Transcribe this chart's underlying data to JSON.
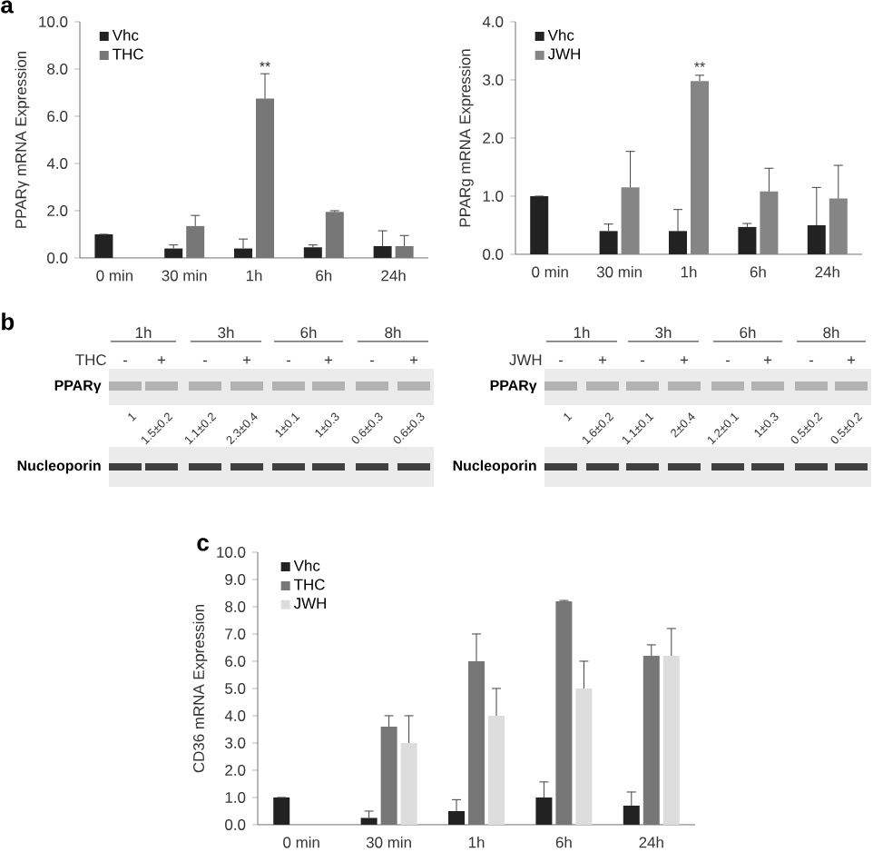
{
  "chart_data": [
    {
      "type": "bar",
      "categories": [
        "0 min",
        "30 min",
        "1h",
        "6h",
        "24h"
      ],
      "ylabel": "PPARγ mRNA Expression",
      "ylim": [
        0,
        10
      ],
      "yticks": [
        {
          "value": 0,
          "label": "0.0"
        },
        {
          "value": 2,
          "label": "2.0"
        },
        {
          "value": 4,
          "label": "4.0"
        },
        {
          "value": 6,
          "label": "6.0"
        },
        {
          "value": 8,
          "label": "8.0"
        },
        {
          "value": 10,
          "label": "10.0"
        }
      ],
      "legend": "top left",
      "series": [
        {
          "name": "Vhc",
          "color": "#222222",
          "values": [
            1.0,
            0.4,
            0.4,
            0.45,
            0.5
          ],
          "errors": [
            null,
            0.15,
            0.4,
            0.1,
            0.65
          ]
        },
        {
          "name": "THC",
          "color": "#777777",
          "values": [
            null,
            1.35,
            6.75,
            1.95,
            0.5
          ],
          "errors": [
            null,
            0.45,
            1.05,
            0.05,
            0.45
          ]
        }
      ],
      "annotations": [
        "a",
        {
          "text": "**",
          "x": "1h",
          "y": 7.8
        }
      ]
    },
    {
      "type": "bar",
      "categories": [
        "0 min",
        "30 min",
        "1h",
        "6h",
        "24h"
      ],
      "ylabel": "PPARg mRNA Expression",
      "ylim": [
        0,
        4
      ],
      "yticks": [
        {
          "value": 0,
          "label": "0.0"
        },
        {
          "value": 1,
          "label": "1.0"
        },
        {
          "value": 2,
          "label": "2.0"
        },
        {
          "value": 3,
          "label": "3.0"
        },
        {
          "value": 4,
          "label": "4.0"
        }
      ],
      "legend": "top left",
      "series": [
        {
          "name": "Vhc",
          "color": "#222222",
          "values": [
            1.0,
            0.4,
            0.4,
            0.47,
            0.5
          ],
          "errors": [
            null,
            0.12,
            0.37,
            0.06,
            0.65
          ]
        },
        {
          "name": "JWH",
          "color": "#858585",
          "values": [
            null,
            1.15,
            2.98,
            1.08,
            0.96
          ],
          "errors": [
            null,
            0.62,
            0.1,
            0.4,
            0.57
          ]
        }
      ],
      "annotations": [
        {
          "text": "**",
          "x": "1h",
          "y": 3.1
        }
      ]
    },
    {
      "type": "other",
      "categories": [
        "1h",
        "3h",
        "6h",
        "8h"
      ],
      "annotations": [
        "b",
        "THC",
        "-",
        "+",
        "PPARγ",
        "Nucleoporin",
        "1",
        "1.5±0.2",
        "1.1±0.2",
        "2.3±0.4",
        "1±0.1",
        "1±0.3",
        "0.6±0.3",
        "0.6±0.3"
      ]
    },
    {
      "type": "other",
      "categories": [
        "1h",
        "3h",
        "6h",
        "8h"
      ],
      "annotations": [
        "JWH",
        "-",
        "+",
        "PPARγ",
        "Nucleoporin",
        "1",
        "1.6±0.2",
        "1.1±0.1",
        "2±0.4",
        "1.2±0.1",
        "1±0.3",
        "0.5±0.2",
        "0.5±0.2"
      ]
    },
    {
      "type": "bar",
      "categories": [
        "0 min",
        "30 min",
        "1h",
        "6h",
        "24h"
      ],
      "ylabel": "CD36 mRNA Expression",
      "ylim": [
        0,
        10
      ],
      "yticks": [
        {
          "value": 0,
          "label": "0.0"
        },
        {
          "value": 1,
          "label": "1.0"
        },
        {
          "value": 2,
          "label": "2.0"
        },
        {
          "value": 3,
          "label": "3.0"
        },
        {
          "value": 4,
          "label": "4.0"
        },
        {
          "value": 5,
          "label": "5.0"
        },
        {
          "value": 6,
          "label": "6.0"
        },
        {
          "value": 7,
          "label": "7.0"
        },
        {
          "value": 8,
          "label": "8.0"
        },
        {
          "value": 9,
          "label": "9.0"
        },
        {
          "value": 10,
          "label": "10.0"
        }
      ],
      "legend": "top left",
      "series": [
        {
          "name": "Vhc",
          "color": "#222222",
          "values": [
            1.0,
            0.25,
            0.5,
            1.0,
            0.7
          ],
          "errors": [
            null,
            0.25,
            0.42,
            0.57,
            0.5
          ]
        },
        {
          "name": "THC",
          "color": "#777777",
          "values": [
            null,
            3.6,
            6.0,
            8.2,
            6.2
          ],
          "errors": [
            null,
            0.4,
            1.0,
            0.03,
            0.4
          ]
        },
        {
          "name": "JWH",
          "color": "#dddddd",
          "values": [
            null,
            3.0,
            4.0,
            5.0,
            6.2
          ],
          "errors": [
            null,
            1.0,
            1.0,
            1.0,
            1.0
          ]
        }
      ],
      "annotations": [
        "c"
      ]
    }
  ]
}
